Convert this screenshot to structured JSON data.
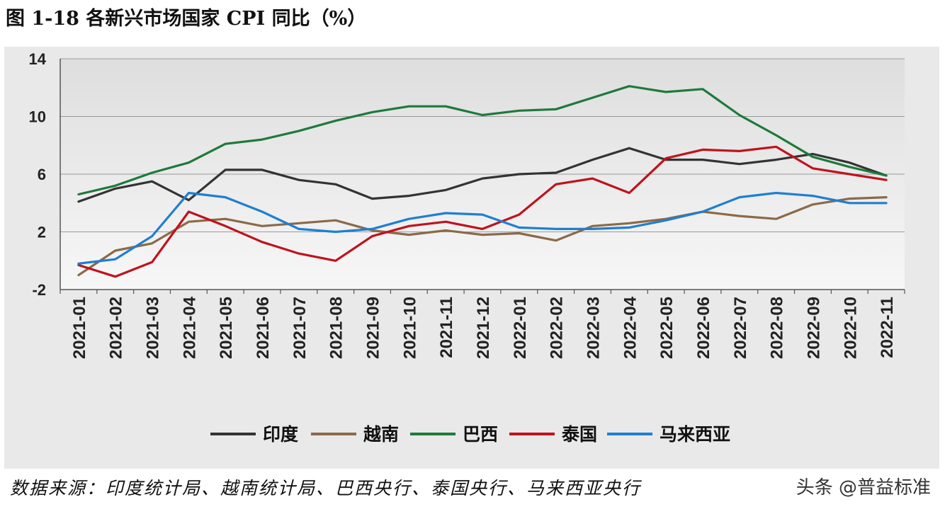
{
  "title": "图 1-18  各新兴市场国家 CPI 同比（%）",
  "source": "数据来源：印度统计局、越南统计局、巴西央行、泰国央行、马来西亚央行",
  "watermark": "头条 @普益标准",
  "chart_data": {
    "type": "line",
    "title": "图 1-18 各新兴市场国家 CPI 同比（%）",
    "xlabel": "",
    "ylabel": "",
    "ylim": [
      -2,
      14
    ],
    "yticks": [
      -2,
      2,
      6,
      10,
      14
    ],
    "grid": true,
    "legend_position": "bottom",
    "categories": [
      "2021-01",
      "2021-02",
      "2021-03",
      "2021-04",
      "2021-05",
      "2021-06",
      "2021-07",
      "2021-08",
      "2021-09",
      "2021-10",
      "2021-11",
      "2021-12",
      "2022-01",
      "2022-02",
      "2022-03",
      "2022-04",
      "2022-05",
      "2022-06",
      "2022-07",
      "2022-08",
      "2022-09",
      "2022-10",
      "2022-11"
    ],
    "series": [
      {
        "name": "印度",
        "color": "#333333",
        "values": [
          4.1,
          5.0,
          5.5,
          4.2,
          6.3,
          6.3,
          5.6,
          5.3,
          4.3,
          4.5,
          4.9,
          5.7,
          6.0,
          6.1,
          7.0,
          7.8,
          7.0,
          7.0,
          6.7,
          7.0,
          7.4,
          6.8,
          5.9
        ]
      },
      {
        "name": "越南",
        "color": "#8b6a48",
        "values": [
          -1.0,
          0.7,
          1.2,
          2.7,
          2.9,
          2.4,
          2.6,
          2.8,
          2.1,
          1.8,
          2.1,
          1.8,
          1.9,
          1.4,
          2.4,
          2.6,
          2.9,
          3.4,
          3.1,
          2.9,
          3.9,
          4.3,
          4.4
        ]
      },
      {
        "name": "巴西",
        "color": "#1e7a3a",
        "values": [
          4.6,
          5.2,
          6.1,
          6.8,
          8.1,
          8.4,
          9.0,
          9.7,
          10.3,
          10.7,
          10.7,
          10.1,
          10.4,
          10.5,
          11.3,
          12.1,
          11.7,
          11.9,
          10.1,
          8.7,
          7.2,
          6.5,
          5.9
        ]
      },
      {
        "name": "泰国",
        "color": "#c0121c",
        "values": [
          -0.3,
          -1.1,
          -0.1,
          3.4,
          2.4,
          1.3,
          0.5,
          0.0,
          1.7,
          2.4,
          2.7,
          2.2,
          3.2,
          5.3,
          5.7,
          4.7,
          7.1,
          7.7,
          7.6,
          7.9,
          6.4,
          6.0,
          5.6
        ]
      },
      {
        "name": "马来西亚",
        "color": "#1f7fd0",
        "values": [
          -0.2,
          0.1,
          1.7,
          4.7,
          4.4,
          3.4,
          2.2,
          2.0,
          2.2,
          2.9,
          3.3,
          3.2,
          2.3,
          2.2,
          2.2,
          2.3,
          2.8,
          3.4,
          4.4,
          4.7,
          4.5,
          4.0,
          4.0
        ]
      }
    ]
  }
}
